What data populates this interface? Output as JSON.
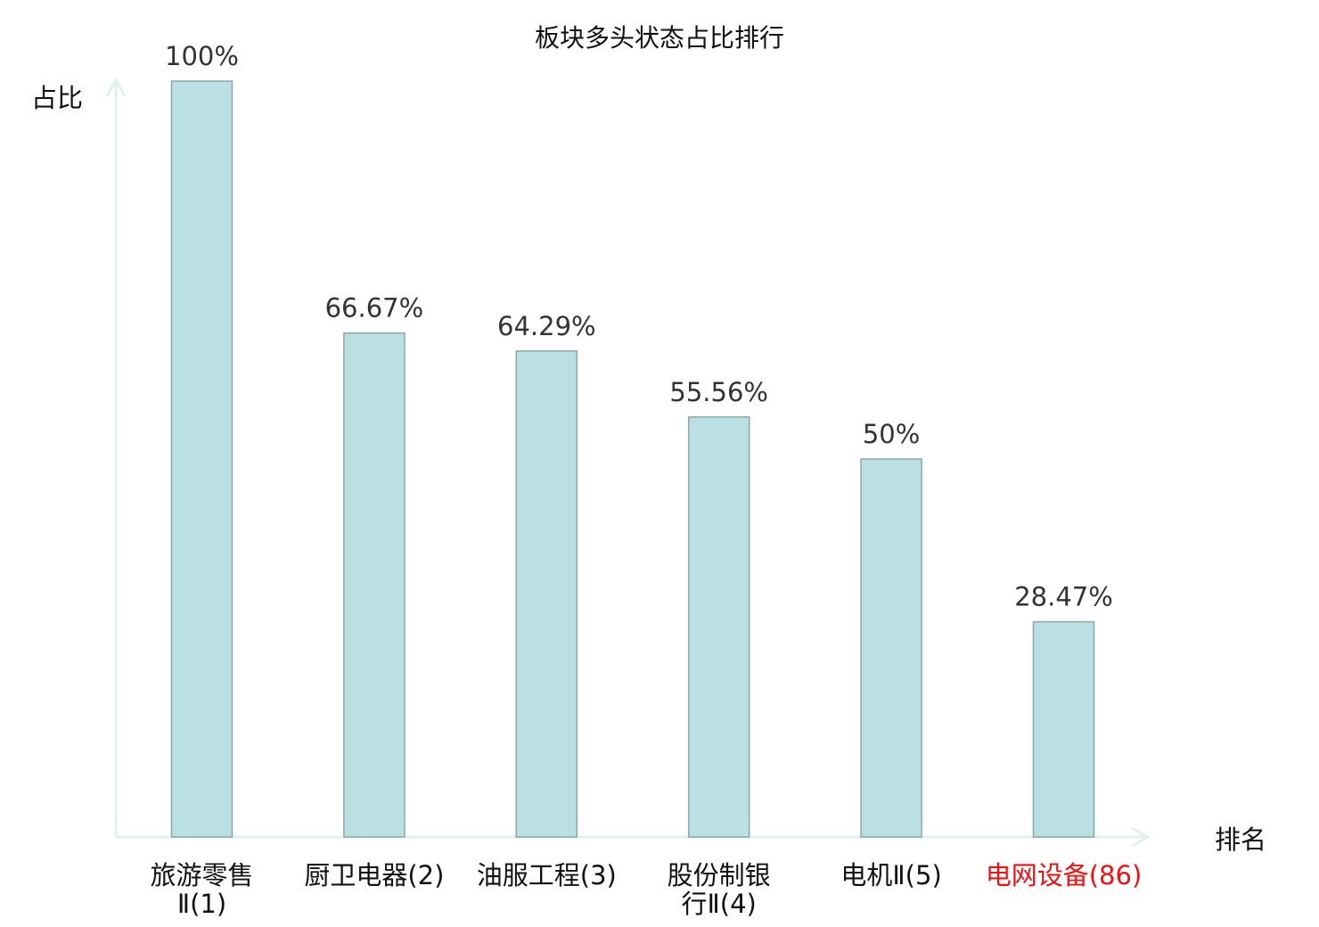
{
  "chart_data": {
    "type": "bar",
    "title": "板块多头状态占比排行",
    "ylabel": "占比",
    "xlabel": "排名",
    "categories": [
      [
        "旅游零售",
        "Ⅱ(1)"
      ],
      [
        "厨卫电器(2)"
      ],
      [
        "油服工程(3)"
      ],
      [
        "股份制银",
        "行Ⅱ(4)"
      ],
      [
        "电机Ⅱ(5)"
      ],
      [
        "电网设备(86)"
      ]
    ],
    "values": [
      100,
      66.67,
      64.29,
      55.56,
      50,
      28.47
    ],
    "data_labels": [
      "100%",
      "66.67%",
      "64.29%",
      "55.56%",
      "50%",
      "28.47%"
    ],
    "highlight_index": 5,
    "ylim": [
      0,
      100
    ],
    "grid": false,
    "colors": {
      "bar_fill": "#bbe0e3",
      "bar_stroke": "#8aa8aa",
      "axis": "#dff2ef",
      "label": "#333333",
      "highlight": "#ee1111"
    }
  }
}
